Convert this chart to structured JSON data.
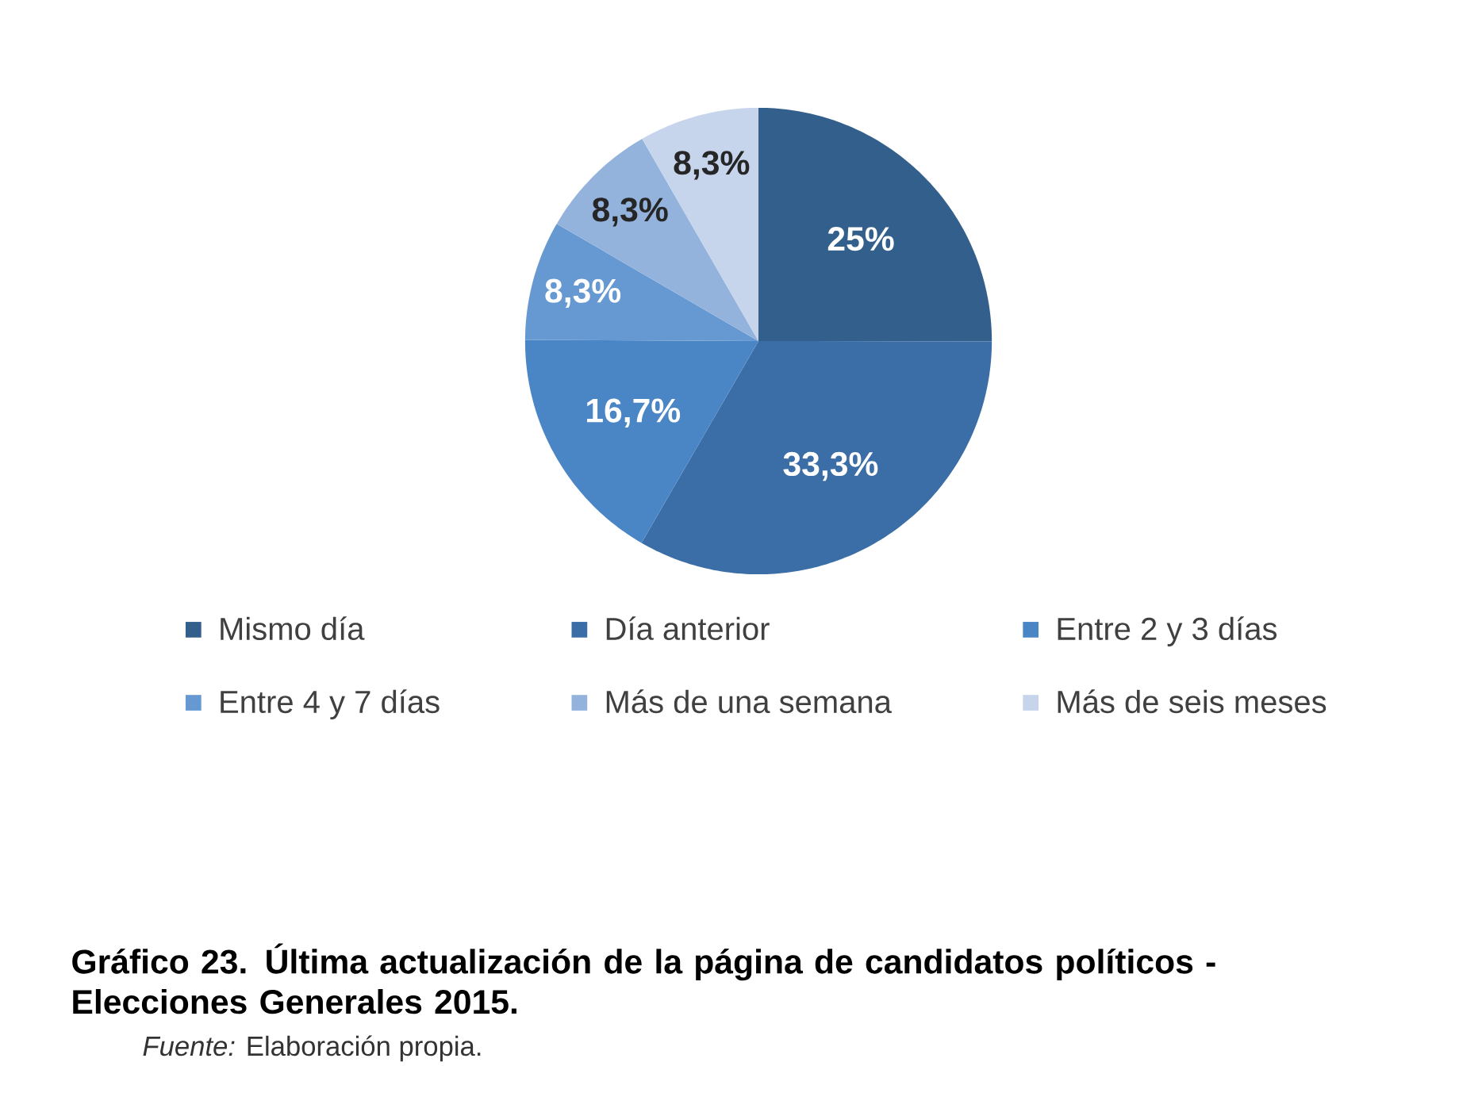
{
  "chart_data": {
    "type": "pie",
    "title": "Gráfico 23. Última actualización de la página de candidatos políticos - Elecciones Generales 2015.",
    "categories": [
      "Mismo día",
      "Día anterior",
      "Entre 2 y 3 días",
      "Entre 4 y 7 días",
      "Más de una semana",
      "Más de seis meses"
    ],
    "values": [
      25,
      33.3,
      16.7,
      8.3,
      8.3,
      8.3
    ],
    "value_labels": [
      "25%",
      "33,3%",
      "16,7%",
      "8,3%",
      "8,3%",
      "8,3%"
    ],
    "colors": [
      "#335f8c",
      "#3b6ea6",
      "#4a86c6",
      "#6699d2",
      "#93b3dd",
      "#c6d5ec"
    ],
    "legend": "bottom",
    "annotations": [
      "*Fuente:* Elaboración propia."
    ]
  }
}
